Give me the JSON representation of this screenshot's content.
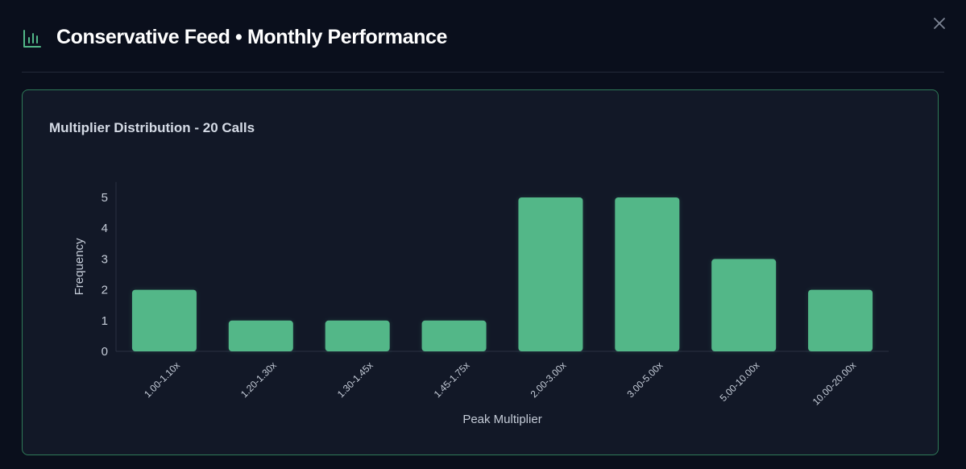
{
  "header": {
    "title": "Conservative Feed • Monthly Performance",
    "icon": "bar-chart-icon",
    "close_icon": "close-icon"
  },
  "colors": {
    "accent": "#52b788",
    "background": "#0a0f1c",
    "card": "#121827",
    "card_border": "#2f7a58"
  },
  "chart_data": {
    "type": "bar",
    "title": "Multiplier Distribution - 20 Calls",
    "xlabel": "Peak Multiplier",
    "ylabel": "Frequency",
    "categories": [
      "1.00-1.10x",
      "1.20-1.30x",
      "1.30-1.45x",
      "1.45-1.75x",
      "2.00-3.00x",
      "3.00-5.00x",
      "5.00-10.00x",
      "10.00-20.00x"
    ],
    "values": [
      2,
      1,
      1,
      1,
      5,
      5,
      3,
      2
    ],
    "ylim": [
      0,
      5.5
    ],
    "yticks": [
      0,
      1,
      2,
      3,
      4,
      5
    ],
    "grid": false,
    "legend": false
  }
}
